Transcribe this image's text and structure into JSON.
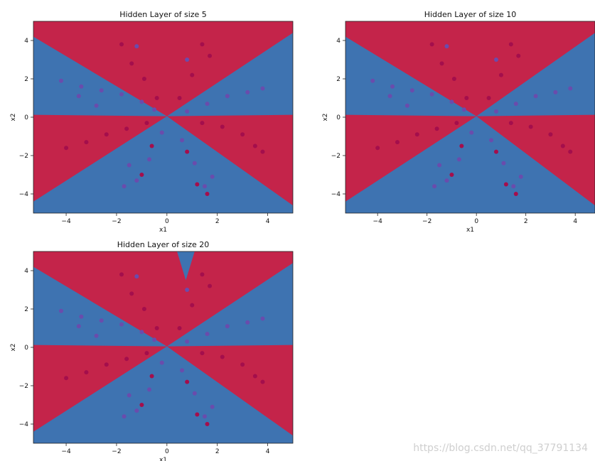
{
  "watermark": "https://blog.csdn.net/qq_37791134",
  "colors": {
    "red": "#c4244a",
    "blue": "#3e73b1",
    "dot_red": "#a40e4c",
    "dot_blue": "#6a4cac"
  },
  "chart_data": [
    {
      "type": "scatter",
      "title": "Hidden Layer of size 5",
      "xlabel": "x1",
      "ylabel": "x2",
      "xlim": [
        -5.3,
        5.0
      ],
      "ylim": [
        -5.0,
        5.0
      ],
      "xticks": [
        -4,
        -2,
        0,
        2,
        4
      ],
      "yticks": [
        -4,
        -2,
        0,
        2,
        4
      ],
      "background": "decision regions (red / blue) forming a flower pattern",
      "series": [
        {
          "class": "red",
          "points": [
            [
              -4.0,
              -1.6
            ],
            [
              -3.2,
              -1.3
            ],
            [
              -2.4,
              -0.9
            ],
            [
              -1.6,
              -0.6
            ],
            [
              -0.8,
              -0.3
            ],
            [
              3.0,
              -0.9
            ],
            [
              3.5,
              -1.5
            ],
            [
              3.8,
              -1.8
            ],
            [
              2.2,
              -0.5
            ],
            [
              1.4,
              -0.3
            ],
            [
              -1.8,
              3.8
            ],
            [
              -1.4,
              2.8
            ],
            [
              -0.9,
              2.0
            ],
            [
              -0.4,
              1.0
            ],
            [
              1.4,
              3.8
            ],
            [
              1.7,
              3.2
            ],
            [
              1.0,
              2.2
            ],
            [
              0.5,
              1.0
            ],
            [
              -1.0,
              -3.0
            ],
            [
              -0.6,
              -1.5
            ],
            [
              1.2,
              -3.5
            ],
            [
              1.6,
              -4.0
            ],
            [
              0.8,
              -1.8
            ]
          ]
        },
        {
          "class": "blue",
          "points": [
            [
              -4.2,
              1.9
            ],
            [
              -3.4,
              1.6
            ],
            [
              -2.6,
              1.4
            ],
            [
              -1.8,
              1.2
            ],
            [
              -1.0,
              0.8
            ],
            [
              -0.5,
              0.4
            ],
            [
              3.2,
              1.3
            ],
            [
              3.8,
              1.5
            ],
            [
              2.4,
              1.1
            ],
            [
              1.6,
              0.7
            ],
            [
              0.8,
              0.3
            ],
            [
              -3.5,
              1.1
            ],
            [
              -2.8,
              0.6
            ],
            [
              -1.5,
              -2.5
            ],
            [
              -1.7,
              -3.6
            ],
            [
              -1.2,
              -3.3
            ],
            [
              -0.7,
              -2.2
            ],
            [
              1.5,
              -3.6
            ],
            [
              1.8,
              -3.1
            ],
            [
              1.1,
              -2.4
            ],
            [
              0.6,
              -1.2
            ],
            [
              -1.2,
              3.7
            ],
            [
              0.8,
              3.0
            ],
            [
              -0.2,
              -0.8
            ]
          ]
        }
      ]
    },
    {
      "type": "scatter",
      "title": "Hidden Layer of size 10",
      "xlabel": "x1",
      "ylabel": "x2",
      "xlim": [
        -5.3,
        4.8
      ],
      "ylim": [
        -5.0,
        5.0
      ],
      "xticks": [
        -4,
        -2,
        0,
        2,
        4
      ],
      "yticks": [
        -4,
        -2,
        0,
        2,
        4
      ],
      "background": "decision regions (red / blue) forming a flower pattern",
      "series": [
        {
          "class": "red",
          "points": [
            [
              -4.0,
              -1.6
            ],
            [
              -3.2,
              -1.3
            ],
            [
              -2.4,
              -0.9
            ],
            [
              -1.6,
              -0.6
            ],
            [
              -0.8,
              -0.3
            ],
            [
              3.0,
              -0.9
            ],
            [
              3.5,
              -1.5
            ],
            [
              3.8,
              -1.8
            ],
            [
              2.2,
              -0.5
            ],
            [
              1.4,
              -0.3
            ],
            [
              -1.8,
              3.8
            ],
            [
              -1.4,
              2.8
            ],
            [
              -0.9,
              2.0
            ],
            [
              -0.4,
              1.0
            ],
            [
              1.4,
              3.8
            ],
            [
              1.7,
              3.2
            ],
            [
              1.0,
              2.2
            ],
            [
              0.5,
              1.0
            ],
            [
              -1.0,
              -3.0
            ],
            [
              -0.6,
              -1.5
            ],
            [
              1.2,
              -3.5
            ],
            [
              1.6,
              -4.0
            ],
            [
              0.8,
              -1.8
            ]
          ]
        },
        {
          "class": "blue",
          "points": [
            [
              -4.2,
              1.9
            ],
            [
              -3.4,
              1.6
            ],
            [
              -2.6,
              1.4
            ],
            [
              -1.8,
              1.2
            ],
            [
              -1.0,
              0.8
            ],
            [
              -0.5,
              0.4
            ],
            [
              3.2,
              1.3
            ],
            [
              3.8,
              1.5
            ],
            [
              2.4,
              1.1
            ],
            [
              1.6,
              0.7
            ],
            [
              0.8,
              0.3
            ],
            [
              -3.5,
              1.1
            ],
            [
              -2.8,
              0.6
            ],
            [
              -1.5,
              -2.5
            ],
            [
              -1.7,
              -3.6
            ],
            [
              -1.2,
              -3.3
            ],
            [
              -0.7,
              -2.2
            ],
            [
              1.5,
              -3.6
            ],
            [
              1.8,
              -3.1
            ],
            [
              1.1,
              -2.4
            ],
            [
              0.6,
              -1.2
            ],
            [
              -1.2,
              3.7
            ],
            [
              0.8,
              3.0
            ],
            [
              -0.2,
              -0.8
            ]
          ]
        }
      ]
    },
    {
      "type": "scatter",
      "title": "Hidden Layer of size 20",
      "xlabel": "x1",
      "ylabel": "x2",
      "xlim": [
        -5.3,
        5.0
      ],
      "ylim": [
        -5.0,
        5.0
      ],
      "xticks": [
        -4,
        -2,
        0,
        2,
        4
      ],
      "yticks": [
        -4,
        -2,
        0,
        2,
        4
      ],
      "background": "decision regions (red / blue) forming a flower pattern",
      "series": [
        {
          "class": "red",
          "points": [
            [
              -4.0,
              -1.6
            ],
            [
              -3.2,
              -1.3
            ],
            [
              -2.4,
              -0.9
            ],
            [
              -1.6,
              -0.6
            ],
            [
              -0.8,
              -0.3
            ],
            [
              3.0,
              -0.9
            ],
            [
              3.5,
              -1.5
            ],
            [
              3.8,
              -1.8
            ],
            [
              2.2,
              -0.5
            ],
            [
              1.4,
              -0.3
            ],
            [
              -1.8,
              3.8
            ],
            [
              -1.4,
              2.8
            ],
            [
              -0.9,
              2.0
            ],
            [
              -0.4,
              1.0
            ],
            [
              1.4,
              3.8
            ],
            [
              1.7,
              3.2
            ],
            [
              1.0,
              2.2
            ],
            [
              0.5,
              1.0
            ],
            [
              -1.0,
              -3.0
            ],
            [
              -0.6,
              -1.5
            ],
            [
              1.2,
              -3.5
            ],
            [
              1.6,
              -4.0
            ],
            [
              0.8,
              -1.8
            ]
          ]
        },
        {
          "class": "blue",
          "points": [
            [
              -4.2,
              1.9
            ],
            [
              -3.4,
              1.6
            ],
            [
              -2.6,
              1.4
            ],
            [
              -1.8,
              1.2
            ],
            [
              -1.0,
              0.8
            ],
            [
              -0.5,
              0.4
            ],
            [
              3.2,
              1.3
            ],
            [
              3.8,
              1.5
            ],
            [
              2.4,
              1.1
            ],
            [
              1.6,
              0.7
            ],
            [
              0.8,
              0.3
            ],
            [
              -3.5,
              1.1
            ],
            [
              -2.8,
              0.6
            ],
            [
              -1.5,
              -2.5
            ],
            [
              -1.7,
              -3.6
            ],
            [
              -1.2,
              -3.3
            ],
            [
              -0.7,
              -2.2
            ],
            [
              1.5,
              -3.6
            ],
            [
              1.8,
              -3.1
            ],
            [
              1.1,
              -2.4
            ],
            [
              0.6,
              -1.2
            ],
            [
              -1.2,
              3.7
            ],
            [
              0.8,
              3.0
            ],
            [
              -0.2,
              -0.8
            ]
          ]
        }
      ]
    }
  ]
}
